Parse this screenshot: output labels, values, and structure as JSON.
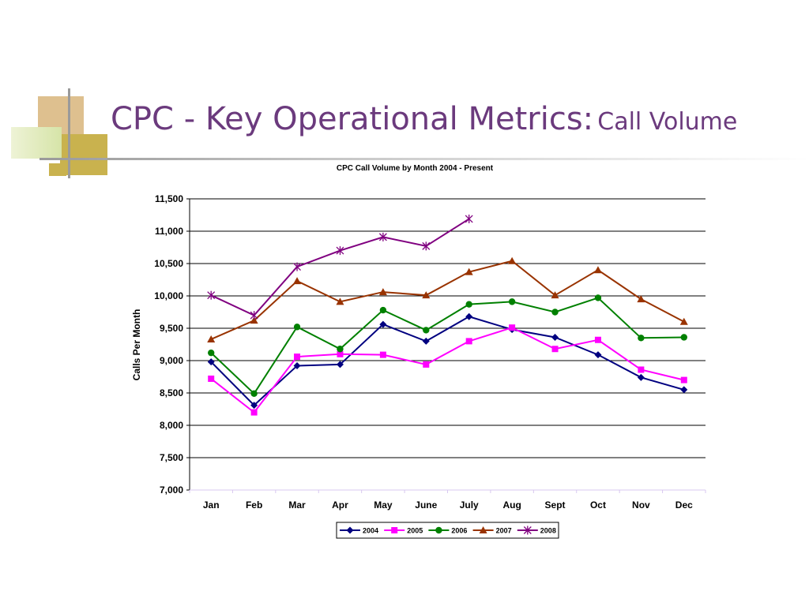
{
  "slide": {
    "title_main": "CPC - Key Operational Metrics:",
    "title_sub": "Call Volume"
  },
  "colors": {
    "title": "#6b3a7d",
    "deco_tan": "#dec08f",
    "deco_gold": "#c9b24e",
    "deco_green": "#d6e4a8"
  },
  "chart_data": {
    "type": "line",
    "title": "CPC Call Volume by Month 2004 - Present",
    "xlabel": "",
    "ylabel": "Calls Per Month",
    "categories": [
      "Jan",
      "Feb",
      "Mar",
      "Apr",
      "May",
      "June",
      "July",
      "Aug",
      "Sept",
      "Oct",
      "Nov",
      "Dec"
    ],
    "ylim": [
      7000,
      11500
    ],
    "yticks": [
      7000,
      7500,
      8000,
      8500,
      9000,
      9500,
      10000,
      10500,
      11000,
      11500
    ],
    "ytick_labels": [
      "7,000",
      "7,500",
      "8,000",
      "8,500",
      "9,000",
      "9,500",
      "10,000",
      "10,500",
      "11,000",
      "11,500"
    ],
    "grid": true,
    "legend": "bottom",
    "series": [
      {
        "name": "2004",
        "color": "#000080",
        "marker": "diamond",
        "values": [
          8980,
          8310,
          8920,
          8940,
          9560,
          9300,
          9680,
          9480,
          9360,
          9090,
          8740,
          8550
        ]
      },
      {
        "name": "2005",
        "color": "#ff00ff",
        "marker": "square",
        "values": [
          8720,
          8200,
          9060,
          9100,
          9090,
          8940,
          9300,
          9510,
          9180,
          9320,
          8860,
          8700
        ]
      },
      {
        "name": "2006",
        "color": "#008000",
        "marker": "circle",
        "values": [
          9120,
          8490,
          9520,
          9180,
          9780,
          9470,
          9870,
          9910,
          9750,
          9970,
          9350,
          9360
        ]
      },
      {
        "name": "2007",
        "color": "#993300",
        "marker": "triangle",
        "values": [
          9330,
          9620,
          10230,
          9910,
          10060,
          10010,
          10370,
          10540,
          10010,
          10400,
          9950,
          9600
        ]
      },
      {
        "name": "2008",
        "color": "#800080",
        "marker": "star",
        "values": [
          10010,
          9700,
          10450,
          10700,
          10910,
          10770,
          11190,
          null,
          null,
          null,
          null,
          null
        ]
      }
    ]
  }
}
